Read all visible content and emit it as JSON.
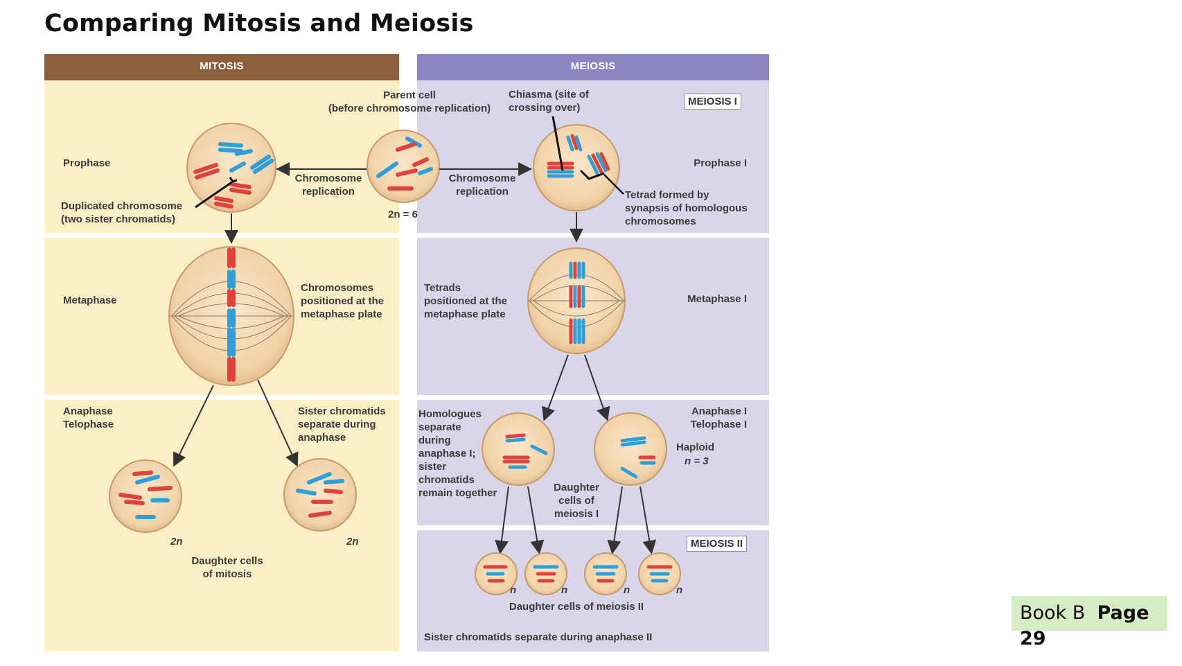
{
  "title": "Comparing Mitosis and Meiosis",
  "columns": {
    "mitosis": "MITOSIS",
    "meiosis": "MEIOSIS"
  },
  "stage_tags": {
    "meiosis_1": "MEIOSIS I",
    "meiosis_2": "MEIOSIS II"
  },
  "labels": {
    "parent_cell": "Parent cell\n(before chromosome replication)",
    "chiasma": "Chiasma (site of\ncrossing over)",
    "prophase": "Prophase",
    "prophase_1": "Prophase I",
    "chromosome_replication_left": "Chromosome\nreplication",
    "chromosome_replication_right": "Chromosome\nreplication",
    "duplicated_chromosome": "Duplicated chromosome\n(two sister chromatids)",
    "two_n_6": "2n = 6",
    "tetrad": "Tetrad formed by\nsynapsis of homologous\nchromosomes",
    "metaphase": "Metaphase",
    "metaphase_1": "Metaphase I",
    "chromosomes_positioned": "Chromosomes\npositioned at the\nmetaphase plate",
    "tetrads_positioned": "Tetrads\npositioned at the\nmetaphase plate",
    "anaphase_telophase": "Anaphase\nTelophase",
    "anaphase_telophase_1": "Anaphase I\nTelophase I",
    "sister_chromatids_separate": "Sister chromatids\nseparate during\nanaphase",
    "homologues_separate": "Homologues\nseparate\nduring\nanaphase I;\nsister\nchromatids\nremain together",
    "haploid": "Haploid",
    "n_equals_3": "n = 3",
    "daughter_cells_meiosis_1": "Daughter\ncells of\nmeiosis I",
    "two_n_left": "2n",
    "two_n_right": "2n",
    "daughter_cells_mitosis": "Daughter cells\nof mitosis",
    "n1": "n",
    "n2": "n",
    "n3": "n",
    "n4": "n",
    "daughter_cells_meiosis_2": "Daughter cells of meiosis II",
    "sister_chromatids_anaphase_2": "Sister chromatids separate during anaphase II"
  },
  "footer": {
    "book": "Book B",
    "page_word": "Page",
    "page_number": "29"
  },
  "colors": {
    "mitosis_header": "#8b5e3c",
    "meiosis_header": "#8a86c2",
    "mitosis_bg": "#fbefc8",
    "meiosis_bg": "#d9d6ea",
    "cell_fill": "#f1d3a8",
    "chromosome_red": "#e0413a",
    "chromosome_blue": "#2f9fd8"
  }
}
